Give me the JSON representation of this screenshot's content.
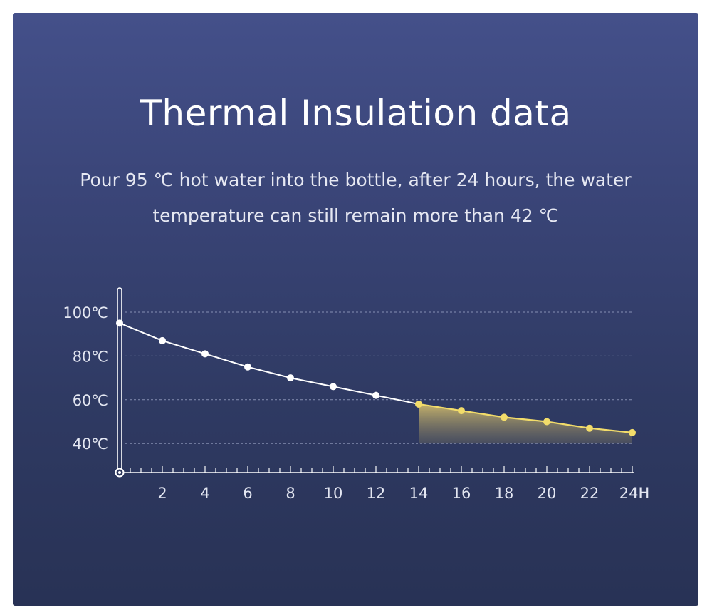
{
  "title": "Thermal Insulation data",
  "subtitle": "Pour 95 ℃ hot water into the bottle, after 24 hours, the water temperature can still remain more than 42 ℃",
  "colors": {
    "line_white": "#ffffff",
    "highlight_yellow": "#f2dc6a"
  },
  "chart_data": {
    "type": "line",
    "title": "Thermal Insulation data",
    "x": [
      0,
      2,
      4,
      6,
      8,
      10,
      12,
      14,
      16,
      18,
      20,
      22,
      24
    ],
    "series": [
      {
        "values": [
          95,
          87,
          81,
          75,
          70,
          66,
          62,
          58,
          55,
          52,
          50,
          47,
          45
        ]
      }
    ],
    "highlight_from_x": 14,
    "x_tick_labels": [
      "2",
      "4",
      "6",
      "8",
      "10",
      "12",
      "14",
      "16",
      "18",
      "20",
      "22",
      "24H"
    ],
    "y_tick_labels": [
      "100℃",
      "80℃",
      "60℃",
      "40℃"
    ],
    "y_ticks": [
      100,
      80,
      60,
      40
    ],
    "xlim": [
      0,
      24
    ],
    "grid": "horizontal dashed"
  }
}
